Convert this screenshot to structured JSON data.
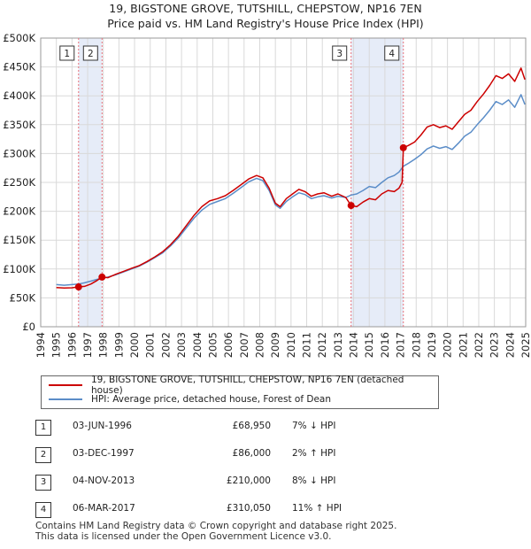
{
  "title_line1": "19, BIGSTONE GROVE, TUTSHILL, CHEPSTOW, NP16 7EN",
  "title_line2": "Price paid vs. HM Land Registry's House Price Index (HPI)",
  "colors": {
    "property": "#cc0000",
    "hpi": "#5b8dc8",
    "shade": "#dde6f5",
    "marker_line": "#e8707a"
  },
  "chart_data": {
    "type": "line",
    "xlim": [
      1994,
      2025
    ],
    "ylim": [
      0,
      500000
    ],
    "yticks": [
      0,
      50000,
      100000,
      150000,
      200000,
      250000,
      300000,
      350000,
      400000,
      450000,
      500000
    ],
    "ytick_labels": [
      "£0",
      "£50K",
      "£100K",
      "£150K",
      "£200K",
      "£250K",
      "£300K",
      "£350K",
      "£400K",
      "£450K",
      "£500K"
    ],
    "xticks": [
      1994,
      1995,
      1996,
      1997,
      1998,
      1999,
      2000,
      2001,
      2002,
      2003,
      2004,
      2005,
      2006,
      2007,
      2008,
      2009,
      2010,
      2011,
      2012,
      2013,
      2014,
      2015,
      2016,
      2017,
      2018,
      2019,
      2020,
      2021,
      2022,
      2023,
      2024,
      2025
    ],
    "xtick_labels": [
      "1994",
      "1995",
      "1996",
      "1997",
      "1998",
      "1999",
      "2000",
      "2001",
      "2002",
      "2003",
      "2004",
      "2005",
      "2006",
      "2007",
      "2008",
      "2009",
      "2010",
      "2011",
      "2012",
      "2013",
      "2014",
      "2015",
      "2016",
      "2017",
      "2018",
      "2019",
      "2020",
      "2021",
      "2022",
      "2023",
      "2024",
      "2025"
    ],
    "shaded_ranges": [
      [
        1996.42,
        1997.92
      ],
      [
        2013.84,
        2017.18
      ]
    ],
    "series": [
      {
        "name": "19, BIGSTONE GROVE, TUTSHILL, CHEPSTOW, NP16 7EN (detached house)",
        "color": "#cc0000",
        "points": [
          [
            1995.0,
            68000
          ],
          [
            1995.5,
            67000
          ],
          [
            1996.0,
            67500
          ],
          [
            1996.42,
            68950
          ],
          [
            1996.8,
            70000
          ],
          [
            1997.2,
            74000
          ],
          [
            1997.6,
            80000
          ],
          [
            1997.92,
            86000
          ],
          [
            1998.3,
            85000
          ],
          [
            1998.8,
            91000
          ],
          [
            1999.3,
            96000
          ],
          [
            1999.8,
            101000
          ],
          [
            2000.3,
            106000
          ],
          [
            2000.8,
            113000
          ],
          [
            2001.3,
            121000
          ],
          [
            2001.8,
            130000
          ],
          [
            2002.3,
            142000
          ],
          [
            2002.8,
            157000
          ],
          [
            2003.3,
            175000
          ],
          [
            2003.8,
            193000
          ],
          [
            2004.3,
            208000
          ],
          [
            2004.8,
            218000
          ],
          [
            2005.3,
            222000
          ],
          [
            2005.8,
            227000
          ],
          [
            2006.3,
            236000
          ],
          [
            2006.8,
            246000
          ],
          [
            2007.3,
            256000
          ],
          [
            2007.8,
            262000
          ],
          [
            2008.2,
            258000
          ],
          [
            2008.6,
            240000
          ],
          [
            2009.0,
            214000
          ],
          [
            2009.3,
            208000
          ],
          [
            2009.7,
            222000
          ],
          [
            2010.1,
            230000
          ],
          [
            2010.5,
            238000
          ],
          [
            2010.9,
            234000
          ],
          [
            2011.3,
            226000
          ],
          [
            2011.7,
            230000
          ],
          [
            2012.1,
            232000
          ],
          [
            2012.6,
            226000
          ],
          [
            2013.0,
            230000
          ],
          [
            2013.5,
            224000
          ],
          [
            2013.84,
            210000
          ],
          [
            2014.2,
            208000
          ],
          [
            2014.6,
            216000
          ],
          [
            2015.0,
            222000
          ],
          [
            2015.4,
            220000
          ],
          [
            2015.8,
            230000
          ],
          [
            2016.2,
            236000
          ],
          [
            2016.6,
            234000
          ],
          [
            2016.9,
            240000
          ],
          [
            2017.1,
            250000
          ],
          [
            2017.18,
            310050
          ],
          [
            2017.5,
            314000
          ],
          [
            2017.9,
            320000
          ],
          [
            2018.3,
            332000
          ],
          [
            2018.7,
            346000
          ],
          [
            2019.1,
            350000
          ],
          [
            2019.5,
            345000
          ],
          [
            2019.9,
            348000
          ],
          [
            2020.3,
            342000
          ],
          [
            2020.7,
            355000
          ],
          [
            2021.1,
            368000
          ],
          [
            2021.5,
            375000
          ],
          [
            2021.9,
            390000
          ],
          [
            2022.3,
            403000
          ],
          [
            2022.7,
            418000
          ],
          [
            2023.1,
            435000
          ],
          [
            2023.5,
            430000
          ],
          [
            2023.9,
            438000
          ],
          [
            2024.3,
            425000
          ],
          [
            2024.7,
            448000
          ],
          [
            2024.95,
            428000
          ]
        ]
      },
      {
        "name": "HPI: Average price, detached house, Forest of Dean",
        "color": "#5b8dc8",
        "points": [
          [
            1995.0,
            73000
          ],
          [
            1995.5,
            72000
          ],
          [
            1996.0,
            73000
          ],
          [
            1996.42,
            74000
          ],
          [
            1996.8,
            76000
          ],
          [
            1997.2,
            79000
          ],
          [
            1997.6,
            82000
          ],
          [
            1997.92,
            84000
          ],
          [
            1998.3,
            86000
          ],
          [
            1998.8,
            90000
          ],
          [
            1999.3,
            95000
          ],
          [
            1999.8,
            100000
          ],
          [
            2000.3,
            105000
          ],
          [
            2000.8,
            112000
          ],
          [
            2001.3,
            120000
          ],
          [
            2001.8,
            128000
          ],
          [
            2002.3,
            140000
          ],
          [
            2002.8,
            154000
          ],
          [
            2003.3,
            171000
          ],
          [
            2003.8,
            188000
          ],
          [
            2004.3,
            202000
          ],
          [
            2004.8,
            212000
          ],
          [
            2005.3,
            217000
          ],
          [
            2005.8,
            222000
          ],
          [
            2006.3,
            231000
          ],
          [
            2006.8,
            241000
          ],
          [
            2007.3,
            251000
          ],
          [
            2007.8,
            257000
          ],
          [
            2008.2,
            253000
          ],
          [
            2008.6,
            236000
          ],
          [
            2009.0,
            211000
          ],
          [
            2009.3,
            205000
          ],
          [
            2009.7,
            217000
          ],
          [
            2010.1,
            225000
          ],
          [
            2010.5,
            232000
          ],
          [
            2010.9,
            229000
          ],
          [
            2011.3,
            222000
          ],
          [
            2011.7,
            225000
          ],
          [
            2012.1,
            227000
          ],
          [
            2012.6,
            223000
          ],
          [
            2013.0,
            226000
          ],
          [
            2013.5,
            224000
          ],
          [
            2013.84,
            228000
          ],
          [
            2014.2,
            230000
          ],
          [
            2014.6,
            236000
          ],
          [
            2015.0,
            243000
          ],
          [
            2015.4,
            241000
          ],
          [
            2015.8,
            250000
          ],
          [
            2016.2,
            258000
          ],
          [
            2016.6,
            262000
          ],
          [
            2016.9,
            268000
          ],
          [
            2017.18,
            278000
          ],
          [
            2017.5,
            283000
          ],
          [
            2017.9,
            290000
          ],
          [
            2018.3,
            298000
          ],
          [
            2018.7,
            308000
          ],
          [
            2019.1,
            313000
          ],
          [
            2019.5,
            309000
          ],
          [
            2019.9,
            312000
          ],
          [
            2020.3,
            307000
          ],
          [
            2020.7,
            318000
          ],
          [
            2021.1,
            330000
          ],
          [
            2021.5,
            337000
          ],
          [
            2021.9,
            350000
          ],
          [
            2022.3,
            362000
          ],
          [
            2022.7,
            375000
          ],
          [
            2023.1,
            390000
          ],
          [
            2023.5,
            385000
          ],
          [
            2023.9,
            393000
          ],
          [
            2024.3,
            380000
          ],
          [
            2024.7,
            402000
          ],
          [
            2024.95,
            385000
          ]
        ]
      }
    ],
    "sales": [
      {
        "label": "1",
        "year": 1996.42,
        "price": 68950
      },
      {
        "label": "2",
        "year": 1997.92,
        "price": 86000
      },
      {
        "label": "3",
        "year": 2013.84,
        "price": 210000
      },
      {
        "label": "4",
        "year": 2017.18,
        "price": 310050
      }
    ]
  },
  "legend": {
    "property": "19, BIGSTONE GROVE, TUTSHILL, CHEPSTOW, NP16 7EN (detached house)",
    "hpi": "HPI: Average price, detached house, Forest of Dean"
  },
  "sales_table": [
    {
      "label": "1",
      "date": "03-JUN-1996",
      "price": "£68,950",
      "hpi": "7% ↓ HPI"
    },
    {
      "label": "2",
      "date": "03-DEC-1997",
      "price": "£86,000",
      "hpi": "2% ↑ HPI"
    },
    {
      "label": "3",
      "date": "04-NOV-2013",
      "price": "£210,000",
      "hpi": "8% ↓ HPI"
    },
    {
      "label": "4",
      "date": "06-MAR-2017",
      "price": "£310,050",
      "hpi": "11% ↑ HPI"
    }
  ],
  "footer": {
    "line1": "Contains HM Land Registry data © Crown copyright and database right 2025.",
    "line2": "This data is licensed under the Open Government Licence v3.0."
  }
}
